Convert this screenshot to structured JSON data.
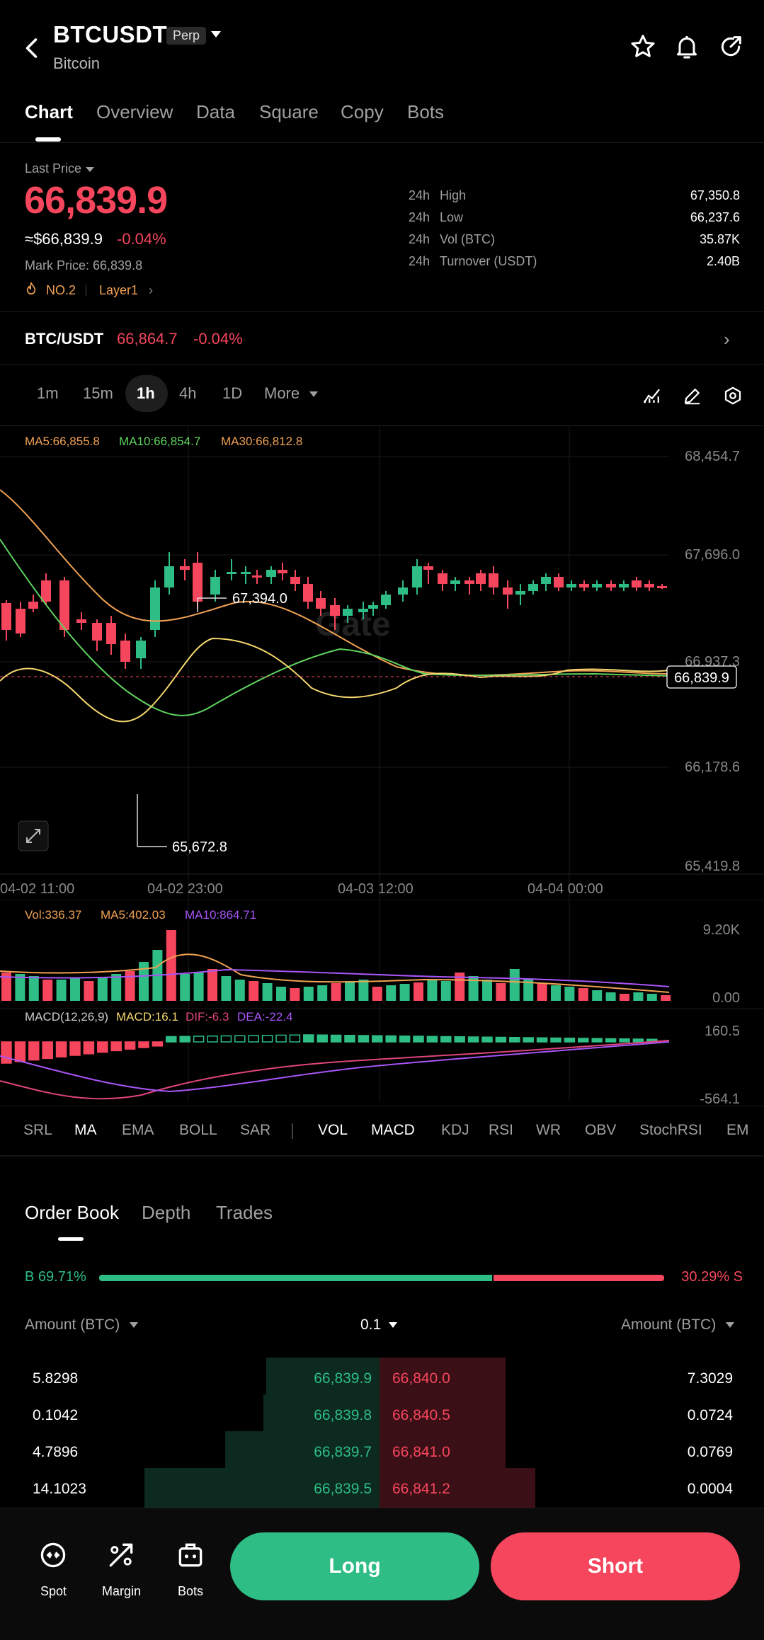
{
  "header": {
    "pair": "BTCUSDT",
    "badge": "Perp",
    "coin": "Bitcoin",
    "icons": [
      "back-icon",
      "star-icon",
      "bell-icon",
      "share-icon"
    ]
  },
  "tabs": [
    "Chart",
    "Overview",
    "Data",
    "Square",
    "Copy",
    "Bots"
  ],
  "price": {
    "last_label": "Last Price",
    "last": "66,839.9",
    "usd": "≈$66,839.9",
    "change": "-0.04%",
    "mark": "Mark Price: 66,839.8",
    "rank": "NO.2",
    "tag": "Layer1"
  },
  "stats": [
    {
      "period": "24h",
      "label": "High",
      "value": "67,350.8"
    },
    {
      "period": "24h",
      "label": "Low",
      "value": "66,237.6"
    },
    {
      "period": "24h",
      "label": "Vol (BTC)",
      "value": "35.87K"
    },
    {
      "period": "24h",
      "label": "Turnover (USDT)",
      "value": "2.40B"
    }
  ],
  "spot": {
    "pair": "BTC/USDT",
    "price": "66,864.7",
    "change": "-0.04%"
  },
  "timeframes": [
    "1m",
    "15m",
    "1h",
    "4h",
    "1D",
    "More"
  ],
  "selected_timeframe": "1h",
  "chart_data": {
    "type": "candlestick",
    "ma_labels": {
      "ma5": "MA5:66,855.8",
      "ma10": "MA10:66,854.7",
      "ma30": "MA30:66,812.8"
    },
    "y_ticks": [
      "68,454.7",
      "67,696.0",
      "66,937.3",
      "66,178.6",
      "65,419.8"
    ],
    "x_ticks": [
      "04-02 11:00",
      "04-02 23:00",
      "04-03 12:00",
      "04-04 00:00"
    ],
    "current_price": "66,839.9",
    "high_annotation": "67,394.0",
    "low_annotation": "65,672.8",
    "watermark": "Gate",
    "volume": {
      "label": "Vol:336.37",
      "ma5": "MA5:402.03",
      "ma10": "MA10:864.71",
      "y_ticks": [
        "9.20K",
        "0.00"
      ]
    },
    "macd": {
      "label": "MACD(12,26,9)",
      "macd": "MACD:16.1",
      "dif": "DIF:-6.3",
      "dea": "DEA:-22.4",
      "y_ticks": [
        "160.5",
        "-564.1"
      ]
    },
    "colors": {
      "up": "#2ebd85",
      "down": "#f6465d",
      "ma5": "#f5d76e",
      "ma10": "#5ed35e",
      "ma30": "#f0a153",
      "macd_dif": "#e0457b",
      "macd_dea": "#a855f7"
    }
  },
  "indicators": {
    "main": [
      "SRL",
      "MA",
      "EMA",
      "BOLL",
      "SAR"
    ],
    "sub": [
      "VOL",
      "MACD",
      "KDJ",
      "RSI",
      "WR",
      "OBV",
      "StochRSI",
      "EM"
    ]
  },
  "orderbook": {
    "tabs": [
      "Order Book",
      "Depth",
      "Trades"
    ],
    "buy_pct": "B 69.71%",
    "sell_pct": "30.29% S",
    "buy_ratio": 0.6971,
    "amount_label_left": "Amount (BTC)",
    "precision": "0.1",
    "amount_label_right": "Amount (BTC)",
    "rows": [
      {
        "bid_amt": "5.8298",
        "bid": "66,839.9",
        "ask": "66,840.0",
        "ask_amt": "7.3029"
      },
      {
        "bid_amt": "0.1042",
        "bid": "66,839.8",
        "ask": "66,840.5",
        "ask_amt": "0.0724"
      },
      {
        "bid_amt": "4.7896",
        "bid": "66,839.7",
        "ask": "66,841.0",
        "ask_amt": "0.0769"
      },
      {
        "bid_amt": "14.1023",
        "bid": "66,839.5",
        "ask": "66,841.2",
        "ask_amt": "0.0004"
      }
    ]
  },
  "bottom": {
    "spot": "Spot",
    "margin": "Margin",
    "bots": "Bots",
    "long": "Long",
    "short": "Short"
  }
}
